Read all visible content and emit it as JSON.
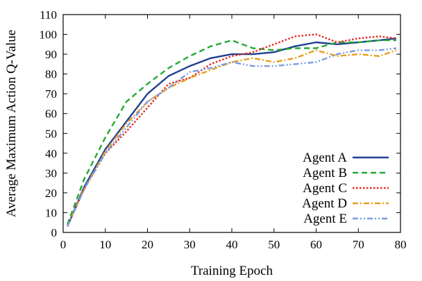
{
  "chart_data": {
    "type": "line",
    "xlabel": "Training Epoch",
    "ylabel": "Average Maximum Action Q-Value",
    "xlim": [
      0,
      80
    ],
    "ylim": [
      0,
      110
    ],
    "xticks": [
      "0",
      "10",
      "20",
      "30",
      "40",
      "50",
      "60",
      "70",
      "80"
    ],
    "yticks": [
      "0",
      "10",
      "20",
      "30",
      "40",
      "50",
      "60",
      "70",
      "80",
      "90",
      "100",
      "110"
    ],
    "grid": false,
    "legend_position": "bottom-right",
    "x": [
      1,
      5,
      10,
      15,
      20,
      25,
      30,
      35,
      40,
      45,
      50,
      55,
      60,
      65,
      70,
      75,
      79
    ],
    "series": [
      {
        "name": "Agent A",
        "color": "#1f3f8f",
        "dash": "solid",
        "values": [
          3,
          23,
          42,
          56,
          70,
          79,
          84,
          88,
          90,
          90,
          91,
          94,
          96,
          95,
          96,
          97,
          98
        ]
      },
      {
        "name": "Agent B",
        "color": "#22aa33",
        "dash": "dashed",
        "values": [
          4,
          27,
          48,
          66,
          75,
          83,
          89,
          94,
          97,
          93,
          92,
          93,
          93,
          96,
          96,
          97,
          97
        ]
      },
      {
        "name": "Agent C",
        "color": "#e8281c",
        "dash": "dotted",
        "values": [
          3,
          22,
          40,
          51,
          63,
          75,
          78,
          85,
          89,
          91,
          95,
          99,
          100,
          96,
          98,
          99,
          98
        ]
      },
      {
        "name": "Agent D",
        "color": "#e5a01a",
        "dash": "dashdot",
        "values": [
          3,
          22,
          41,
          55,
          66,
          73,
          78,
          82,
          86,
          88,
          86,
          88,
          92,
          89,
          90,
          89,
          92
        ]
      },
      {
        "name": "Agent E",
        "color": "#7b9be0",
        "dash": "dashdotdot",
        "values": [
          3,
          22,
          40,
          53,
          66,
          73,
          81,
          83,
          86,
          84,
          84,
          85,
          86,
          90,
          92,
          92,
          93
        ]
      }
    ]
  }
}
